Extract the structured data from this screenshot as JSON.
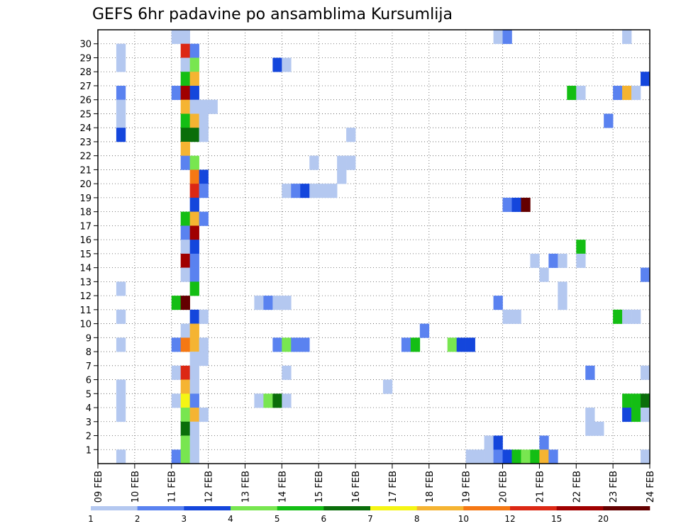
{
  "chart_data": {
    "type": "heatmap",
    "title": "GEFS 6hr padavine po ansamblima Kursumlija",
    "xlabel": "",
    "ylabel": "",
    "y_members": [
      1,
      2,
      3,
      4,
      5,
      6,
      7,
      8,
      9,
      10,
      11,
      12,
      13,
      14,
      15,
      16,
      17,
      18,
      19,
      20,
      21,
      22,
      23,
      24,
      25,
      26,
      27,
      28,
      29,
      30
    ],
    "y_tick_labels": [
      "1",
      "2",
      "3",
      "4",
      "5",
      "6",
      "7",
      "8",
      "9",
      "10",
      "11",
      "12",
      "13",
      "14",
      "15",
      "16",
      "17",
      "18",
      "19",
      "20",
      "21",
      "22",
      "23",
      "24",
      "25",
      "26",
      "27",
      "28",
      "29",
      "30"
    ],
    "x_tick_labels": [
      "09 FEB",
      "10 FEB",
      "11 FEB",
      "12 FEB",
      "13 FEB",
      "14 FEB",
      "15 FEB",
      "16 FEB",
      "17 FEB",
      "18 FEB",
      "19 FEB",
      "20 FEB",
      "21 FEB",
      "22 FEB",
      "23 FEB",
      "24 FEB"
    ],
    "x_steps_per_day": 4,
    "x_total_steps": 60,
    "grid": true,
    "colorbar": {
      "position": "bottom",
      "colors": [
        "#b4c8f0",
        "#5a82f0",
        "#1446dc",
        "#78e650",
        "#14be14",
        "#0a6e0a",
        "#f5f514",
        "#f5b432",
        "#f57814",
        "#dc2814",
        "#a00000",
        "#640000"
      ],
      "tick_labels": [
        "1",
        "2",
        "3",
        "4",
        "5",
        "6",
        "7",
        "8",
        "10",
        "12",
        "15",
        "20"
      ]
    },
    "cells": [
      [
        2,
        29,
        1
      ],
      [
        2,
        28,
        1
      ],
      [
        2,
        26,
        2
      ],
      [
        2,
        25,
        1
      ],
      [
        2,
        24,
        1
      ],
      [
        2,
        23,
        3
      ],
      [
        2,
        12,
        1
      ],
      [
        2,
        10,
        1
      ],
      [
        2,
        8,
        1
      ],
      [
        2,
        5,
        1
      ],
      [
        2,
        4,
        1
      ],
      [
        2,
        3,
        1
      ],
      [
        2,
        0,
        1
      ],
      [
        8,
        30,
        1
      ],
      [
        8,
        26,
        2
      ],
      [
        8,
        11,
        5
      ],
      [
        8,
        8,
        2
      ],
      [
        8,
        6,
        1
      ],
      [
        8,
        4,
        1
      ],
      [
        8,
        0,
        2
      ],
      [
        9,
        30,
        1
      ],
      [
        9,
        29,
        10
      ],
      [
        9,
        28,
        1
      ],
      [
        9,
        27,
        5
      ],
      [
        9,
        26,
        11
      ],
      [
        9,
        25,
        8
      ],
      [
        9,
        24,
        5
      ],
      [
        9,
        23,
        6
      ],
      [
        9,
        22,
        8
      ],
      [
        9,
        21,
        2
      ],
      [
        9,
        17,
        5
      ],
      [
        9,
        16,
        2
      ],
      [
        9,
        15,
        1
      ],
      [
        9,
        14,
        11
      ],
      [
        9,
        13,
        1
      ],
      [
        9,
        11,
        12
      ],
      [
        9,
        9,
        1
      ],
      [
        9,
        8,
        9
      ],
      [
        9,
        6,
        10
      ],
      [
        9,
        5,
        8
      ],
      [
        9,
        4,
        7
      ],
      [
        9,
        3,
        4
      ],
      [
        9,
        2,
        6
      ],
      [
        9,
        1,
        4
      ],
      [
        9,
        0,
        4
      ],
      [
        10,
        29,
        2
      ],
      [
        10,
        28,
        4
      ],
      [
        10,
        27,
        8
      ],
      [
        10,
        26,
        3
      ],
      [
        10,
        25,
        1
      ],
      [
        10,
        24,
        8
      ],
      [
        10,
        23,
        6
      ],
      [
        10,
        21,
        4
      ],
      [
        10,
        20,
        9
      ],
      [
        10,
        19,
        10
      ],
      [
        10,
        18,
        3
      ],
      [
        10,
        17,
        8
      ],
      [
        10,
        16,
        11
      ],
      [
        10,
        15,
        3
      ],
      [
        10,
        14,
        2
      ],
      [
        10,
        13,
        2
      ],
      [
        10,
        12,
        5
      ],
      [
        10,
        10,
        3
      ],
      [
        10,
        9,
        8
      ],
      [
        10,
        8,
        8
      ],
      [
        10,
        7,
        1
      ],
      [
        10,
        6,
        1
      ],
      [
        10,
        5,
        1
      ],
      [
        10,
        4,
        2
      ],
      [
        10,
        3,
        8
      ],
      [
        10,
        2,
        1
      ],
      [
        10,
        1,
        1
      ],
      [
        10,
        0,
        1
      ],
      [
        11,
        25,
        1
      ],
      [
        11,
        24,
        1
      ],
      [
        11,
        23,
        1
      ],
      [
        11,
        20,
        3
      ],
      [
        11,
        19,
        2
      ],
      [
        11,
        17,
        2
      ],
      [
        11,
        10,
        1
      ],
      [
        11,
        8,
        1
      ],
      [
        11,
        7,
        1
      ],
      [
        11,
        3,
        1
      ],
      [
        12,
        25,
        1
      ],
      [
        17,
        11,
        1
      ],
      [
        17,
        4,
        1
      ],
      [
        18,
        11,
        2
      ],
      [
        18,
        4,
        4
      ],
      [
        19,
        28,
        3
      ],
      [
        19,
        11,
        1
      ],
      [
        19,
        8,
        2
      ],
      [
        19,
        4,
        6
      ],
      [
        20,
        28,
        1
      ],
      [
        20,
        19,
        1
      ],
      [
        20,
        11,
        1
      ],
      [
        20,
        8,
        4
      ],
      [
        20,
        6,
        1
      ],
      [
        20,
        4,
        1
      ],
      [
        21,
        19,
        2
      ],
      [
        21,
        8,
        2
      ],
      [
        22,
        19,
        3
      ],
      [
        22,
        8,
        2
      ],
      [
        23,
        21,
        1
      ],
      [
        23,
        19,
        1
      ],
      [
        24,
        19,
        1
      ],
      [
        25,
        19,
        1
      ],
      [
        26,
        21,
        1
      ],
      [
        26,
        20,
        1
      ],
      [
        27,
        23,
        1
      ],
      [
        27,
        21,
        1
      ],
      [
        31,
        5,
        1
      ],
      [
        33,
        8,
        2
      ],
      [
        34,
        8,
        5
      ],
      [
        35,
        9,
        2
      ],
      [
        38,
        8,
        4
      ],
      [
        39,
        8,
        3
      ],
      [
        40,
        8,
        3
      ],
      [
        40,
        0,
        1
      ],
      [
        41,
        0,
        1
      ],
      [
        42,
        1,
        1
      ],
      [
        42,
        0,
        1
      ],
      [
        43,
        30,
        1
      ],
      [
        43,
        11,
        2
      ],
      [
        43,
        1,
        3
      ],
      [
        43,
        0,
        2
      ],
      [
        44,
        30,
        2
      ],
      [
        44,
        18,
        2
      ],
      [
        44,
        10,
        1
      ],
      [
        44,
        0,
        3
      ],
      [
        45,
        18,
        3
      ],
      [
        45,
        10,
        1
      ],
      [
        45,
        0,
        5
      ],
      [
        46,
        18,
        12
      ],
      [
        46,
        0,
        4
      ],
      [
        47,
        14,
        1
      ],
      [
        47,
        0,
        5
      ],
      [
        48,
        13,
        1
      ],
      [
        48,
        1,
        2
      ],
      [
        48,
        0,
        8
      ],
      [
        49,
        14,
        2
      ],
      [
        49,
        0,
        2
      ],
      [
        50,
        14,
        1
      ],
      [
        50,
        12,
        1
      ],
      [
        50,
        11,
        1
      ],
      [
        51,
        26,
        5
      ],
      [
        52,
        26,
        1
      ],
      [
        52,
        15,
        5
      ],
      [
        52,
        14,
        1
      ],
      [
        53,
        6,
        2
      ],
      [
        53,
        3,
        1
      ],
      [
        53,
        2,
        1
      ],
      [
        54,
        2,
        1
      ],
      [
        55,
        24,
        2
      ],
      [
        56,
        26,
        2
      ],
      [
        56,
        10,
        5
      ],
      [
        57,
        30,
        1
      ],
      [
        57,
        26,
        8
      ],
      [
        57,
        10,
        1
      ],
      [
        57,
        4,
        5
      ],
      [
        57,
        3,
        3
      ],
      [
        58,
        26,
        1
      ],
      [
        58,
        10,
        1
      ],
      [
        58,
        4,
        5
      ],
      [
        58,
        3,
        5
      ],
      [
        59,
        27,
        3
      ],
      [
        59,
        13,
        2
      ],
      [
        59,
        6,
        1
      ],
      [
        59,
        4,
        6
      ],
      [
        59,
        3,
        1
      ],
      [
        59,
        0,
        1
      ]
    ]
  }
}
